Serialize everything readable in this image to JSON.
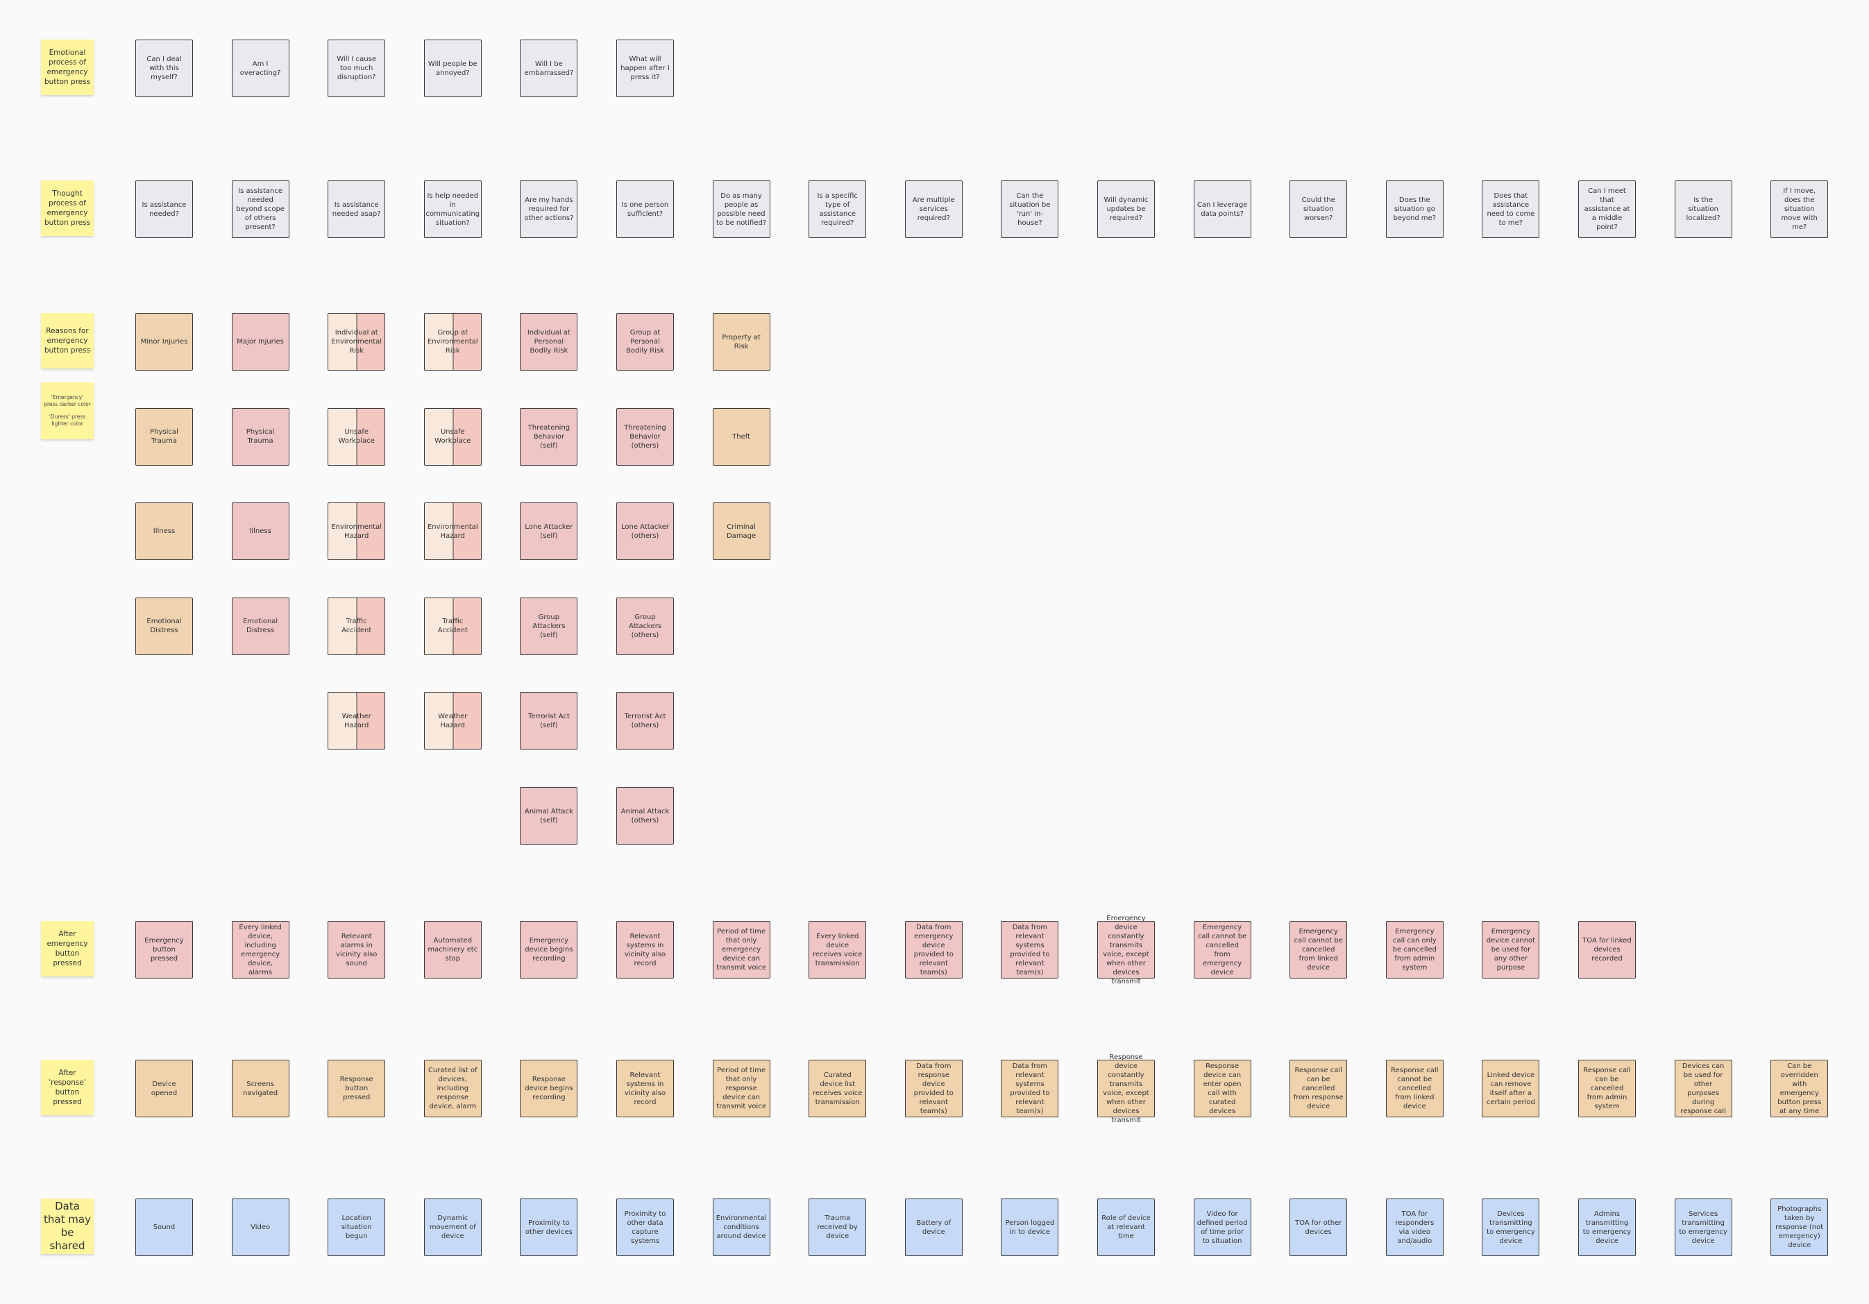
{
  "legend_note": [
    "'Emergency' press darker color",
    "'Duress' press lighter color"
  ],
  "sections": [
    {
      "label": "Emotional process of emergency button press",
      "color": "#e9e9ee",
      "cards": [
        "Can I deal with this myself?",
        "Am I overacting?",
        "Will I cause too much disruption?",
        "Will people be annoyed?",
        "Will I be embarrassed?",
        "What will happen after I press it?"
      ]
    },
    {
      "label": "Thought process of emergency button press",
      "color": "#e9e9ee",
      "cards": [
        "Is assistance needed?",
        "Is assistance needed beyond scope of others present?",
        "Is assistance needed asap?",
        "Is help needed in communicating situation?",
        "Are my hands required for other actions?",
        "Is one person sufficient?",
        "Do as many people as possible need to be notified?",
        "Is a specific type of assistance required?",
        "Are multiple services required?",
        "Can the situation be 'run' in-house?",
        "Will dynamic updates be required?",
        "Can I leverage data points?",
        "Could the situation worsen?",
        "Does the situation go beyond me?",
        "Does that assistance need to come to me?",
        "Can I meet that assistance at a middle point?",
        "Is the situation localized?",
        "If I move, does the situation move with me?"
      ]
    },
    {
      "label": "Reasons for emergency button press",
      "columns": [
        {
          "color": "#f0d3b0",
          "cards": [
            "Minor Injuries",
            "Physical Trauma",
            "Illness",
            "Emotional Distress"
          ]
        },
        {
          "color": "#efc6c6",
          "cards": [
            "Major Injuries",
            "Physical Trauma",
            "Illness",
            "Emotional Distress"
          ]
        },
        {
          "color": [
            "#f9e9dd",
            "#f3c8c0"
          ],
          "cards": [
            "Individual at Environmental Risk",
            "Unsafe Workplace",
            "Environmental Hazard",
            "Traffic Accident",
            "Weather Hazard"
          ]
        },
        {
          "color": [
            "#f9e9dd",
            "#f3c8c0"
          ],
          "cards": [
            "Group at Environmental Risk",
            "Unsafe Workplace",
            "Environmental Hazard",
            "Traffic Accident",
            "Weather Hazard"
          ]
        },
        {
          "color": "#efc6c6",
          "cards": [
            "Individual at Personal Bodily Risk",
            "Threatening Behavior (self)",
            "Lone Attacker (self)",
            "Group Attackers (self)",
            "Terrorist Act (self)",
            "Animal Attack (self)"
          ]
        },
        {
          "color": "#efc6c6",
          "cards": [
            "Group at Personal Bodily Risk",
            "Threatening Behavior (others)",
            "Lone Attacker (others)",
            "Group Attackers (others)",
            "Terrorist Act (others)",
            "Animal Attack (others)"
          ]
        },
        {
          "color": "#f0d3b0",
          "cards": [
            "Property at Risk",
            "Theft",
            "Criminal Damage"
          ]
        }
      ]
    },
    {
      "label": "After emergency button pressed",
      "color": "#efc5c6",
      "cards": [
        "Emergency button pressed",
        "Every linked device, including emergency device, alarms",
        "Relevant alarms in vicinity also sound",
        "Automated machinery etc stop",
        "Emergency device begins recording",
        "Relevant systems in vicinity also record",
        "Period of time that only emergency device can transmit voice",
        "Every linked device receives voice transmission",
        "Data from emergency device provided to relevant team(s)",
        "Data from relevant systems provided to relevant team(s)",
        "Emergency device constantly transmits voice, except when other devices transmit",
        "Emergency call cannot be cancelled from emergency device",
        "Emergency call cannot be cancelled from linked device",
        "Emergency call can only be cancelled from admin system",
        "Emergency device cannot be used for any other purpose",
        "TOA for linked devices recorded"
      ]
    },
    {
      "label": "After 'response' button pressed",
      "color": "#f0d2ad",
      "cards": [
        "Device opened",
        "Screens navigated",
        "Response button pressed",
        "Curated list of devices, including response device, alarm",
        "Response device begins recording",
        "Relevant systems in vicinity also record",
        "Period of time that only response device can transmit voice",
        "Curated device list receives voice transmission",
        "Data from response device provided to relevant team(s)",
        "Data from relevant systems provided to relevant team(s)",
        "Response device constantly transmits voice, except when other devices transmit",
        "Response device can enter open call with curated devices",
        "Response call can be cancelled from response device",
        "Response call cannot be cancelled from linked device",
        "Linked device can remove itself after a certain period",
        "Response call can be cancelled from admin system",
        "Devices can be used for other purposes during response call",
        "Can be overridden with emergency button press at any time"
      ]
    },
    {
      "label": "Data that may be shared",
      "color": "#c6daf7",
      "cards": [
        "Sound",
        "Video",
        "Location situation begun",
        "Dynamic movement of device",
        "Proximity to other devices",
        "Proximity to other data capture systems",
        "Environmental conditions around device",
        "Trauma received by device",
        "Battery of device",
        "Person logged in to device",
        "Role of device at relevant time",
        "Video for defined period of time prior to situation",
        "TOA for other devices",
        "TOA for responders via video and/audio",
        "Devices transmitting to emergency device",
        "Admins transmitting to emergency device",
        "Services transmitting to emergency device",
        "Photographs taken by response (not emergency) device"
      ]
    }
  ]
}
